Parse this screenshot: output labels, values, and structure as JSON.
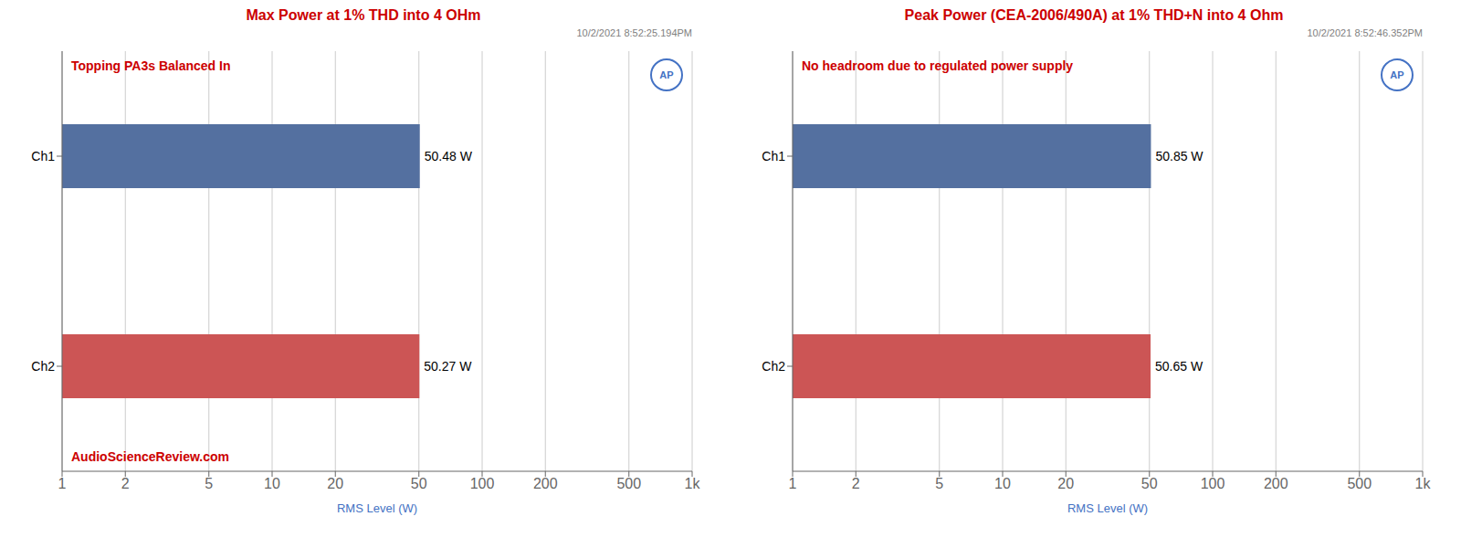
{
  "chart_data": [
    {
      "type": "bar",
      "orientation": "horizontal",
      "log": "x",
      "title": "Max Power at 1% THD into 4 OHm",
      "subtitle": "10/2/2021 8:52:25.194PM",
      "annotations": [
        "Topping PA3s Balanced In",
        "AudioScienceReview.com",
        "AP"
      ],
      "x_label": "RMS Level (W)",
      "categories": [
        "Ch1",
        "Ch2"
      ],
      "values": [
        50.48,
        50.27
      ],
      "value_labels": [
        "50.48 W",
        "50.27 W"
      ],
      "data_labels": true,
      "colors": [
        "#5470a0",
        "#cc5555"
      ],
      "xlim": [
        1,
        1000
      ],
      "xticks": [
        1,
        2,
        5,
        10,
        20,
        50,
        100,
        200,
        500,
        {
          "value": 1000,
          "label": "1k"
        }
      ],
      "grid": true
    },
    {
      "type": "bar",
      "orientation": "horizontal",
      "log": "x",
      "title": "Peak Power (CEA-2006/490A) at 1% THD+N into 4 Ohm",
      "subtitle": "10/2/2021 8:52:46.352PM",
      "annotations": [
        "No headroom due to regulated power supply",
        "AP"
      ],
      "x_label": "RMS Level (W)",
      "categories": [
        "Ch1",
        "Ch2"
      ],
      "values": [
        50.85,
        50.65
      ],
      "value_labels": [
        "50.85 W",
        "50.65 W"
      ],
      "data_labels": true,
      "colors": [
        "#5470a0",
        "#cc5555"
      ],
      "xlim": [
        1,
        1000
      ],
      "xticks": [
        1,
        2,
        5,
        10,
        20,
        50,
        100,
        200,
        500,
        {
          "value": 1000,
          "label": "1k"
        }
      ],
      "grid": true
    }
  ]
}
